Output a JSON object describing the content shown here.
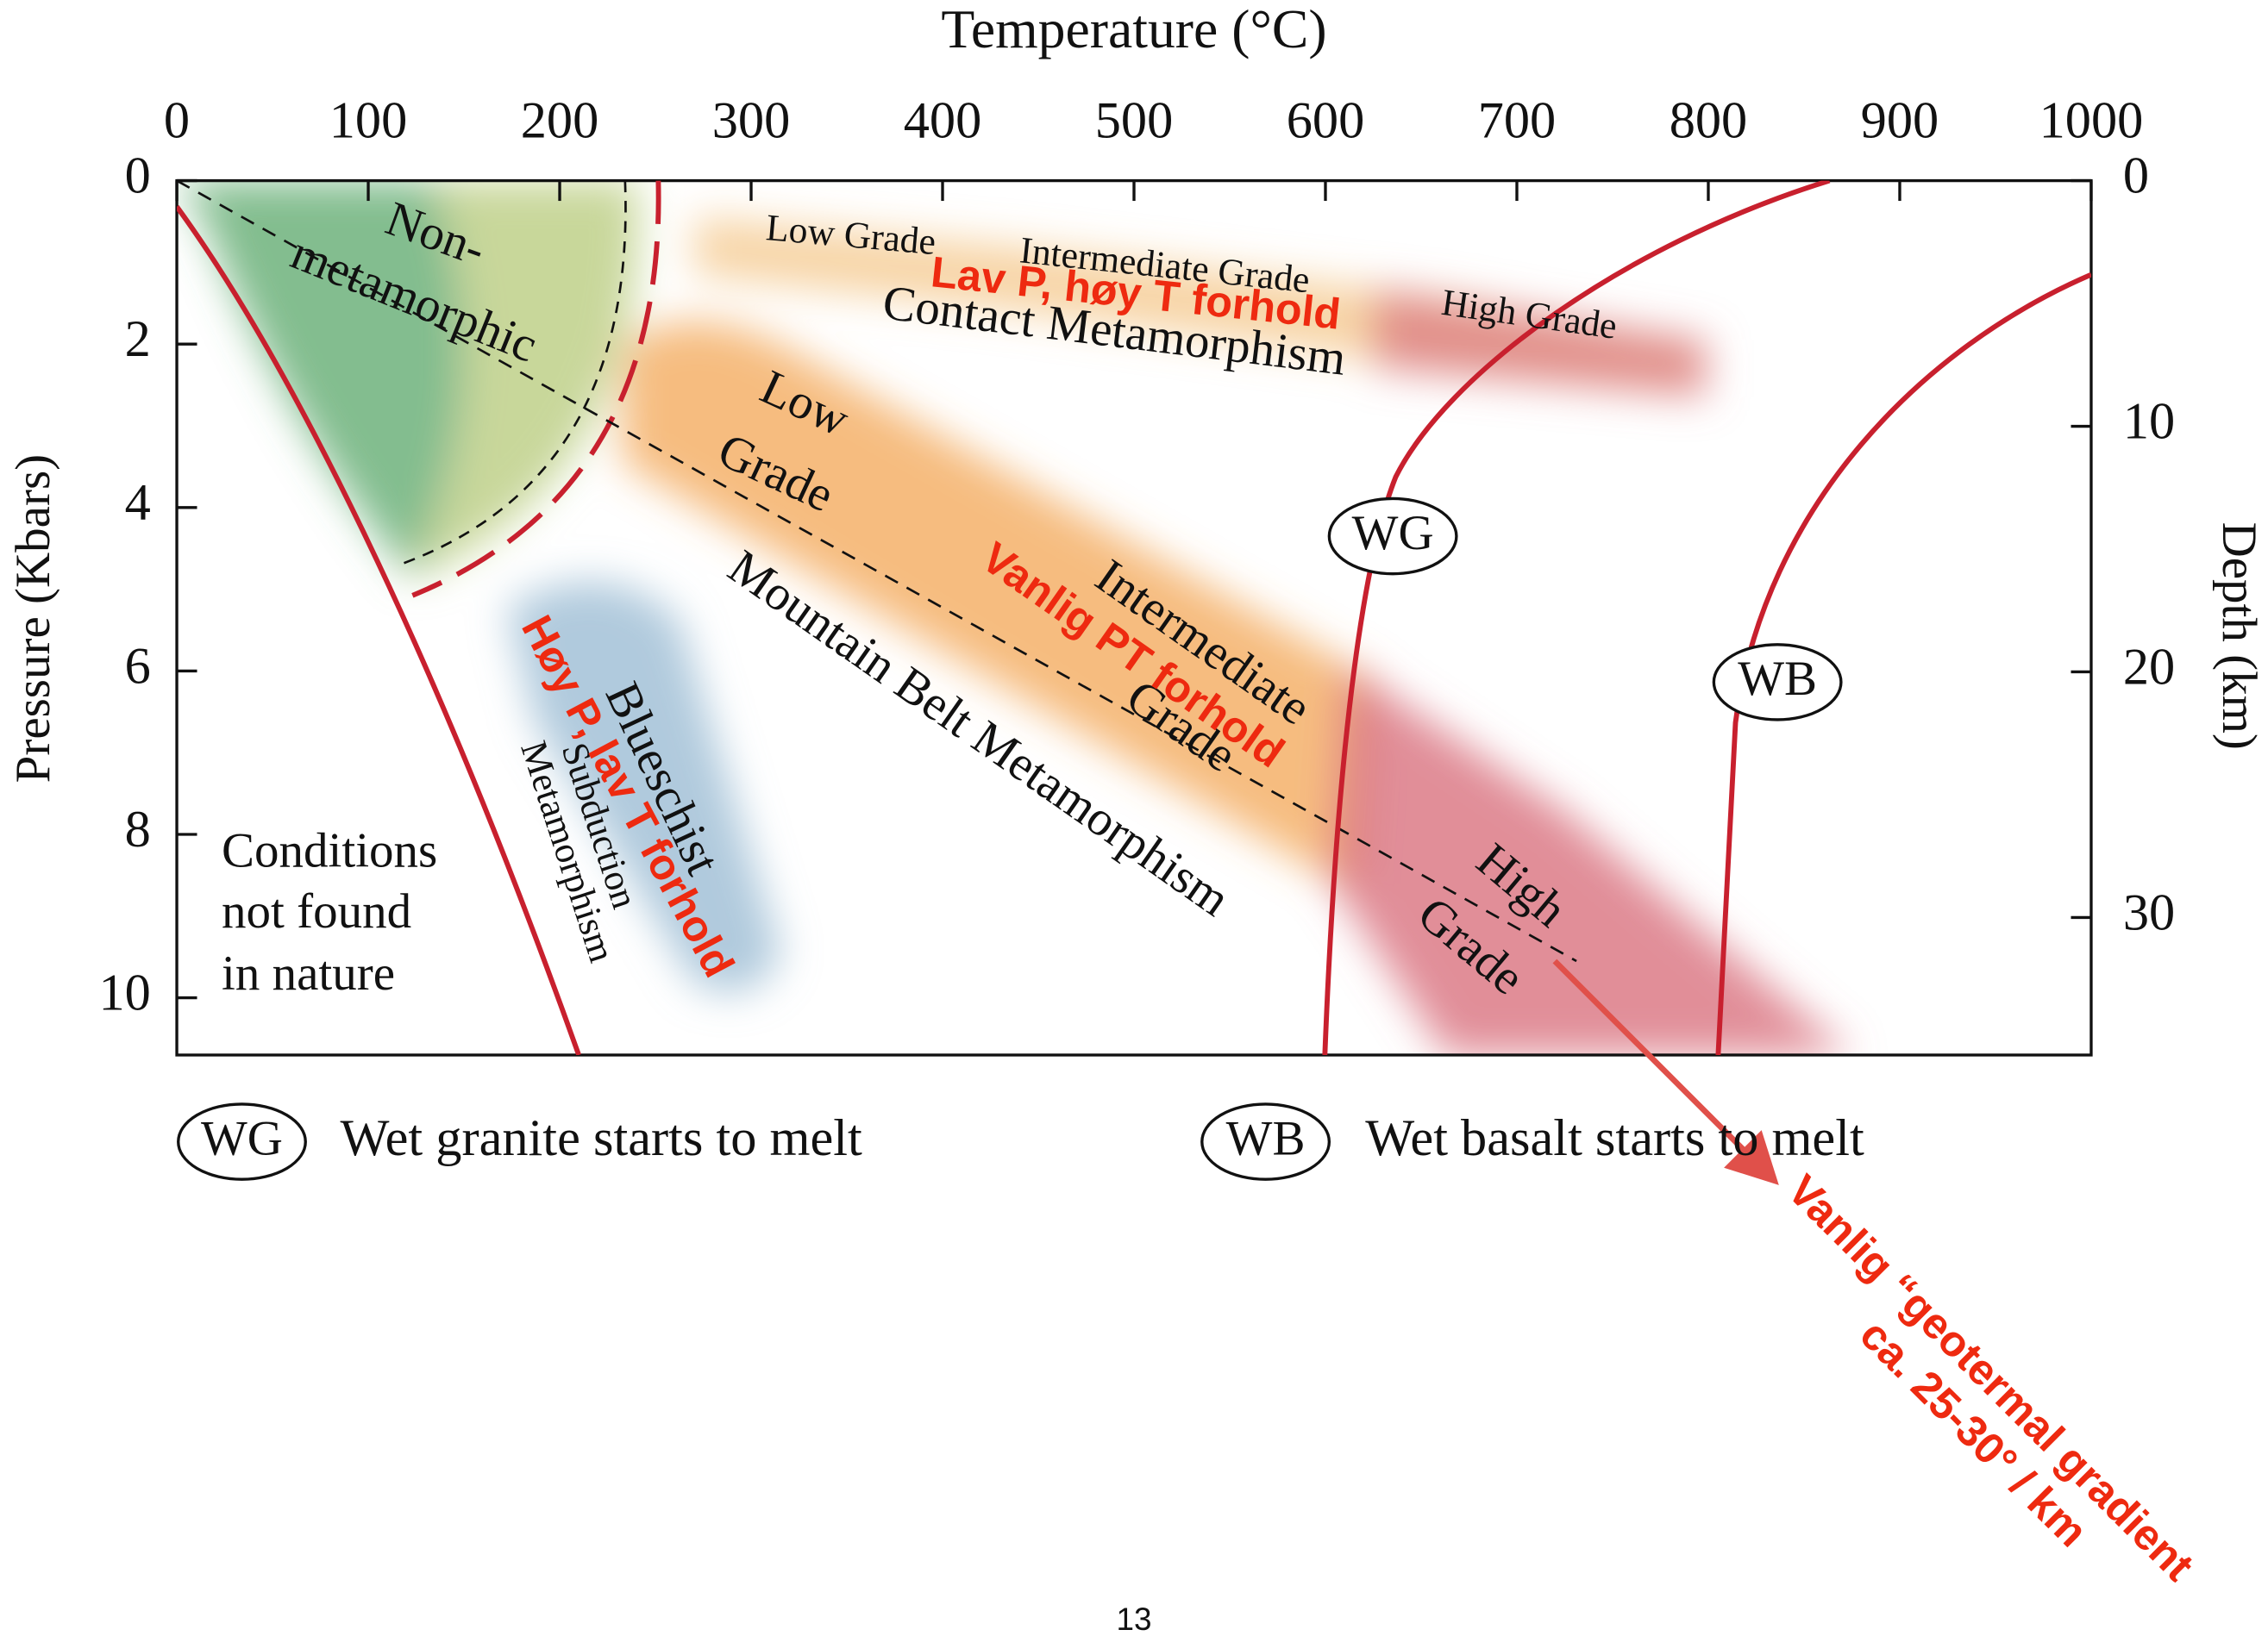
{
  "title": "Temperature (°C)",
  "x_axis": {
    "lim": [
      0,
      1000
    ],
    "ticks": [
      0,
      100,
      200,
      300,
      400,
      500,
      600,
      700,
      800,
      900,
      1000
    ]
  },
  "y_left": {
    "label": "Pressure (Kbars)",
    "lim": [
      0,
      10.7
    ],
    "ticks": [
      0,
      2,
      4,
      6,
      8,
      10
    ]
  },
  "y_right": {
    "label": "Depth (km)",
    "lim": [
      0,
      35.6
    ],
    "ticks": [
      0,
      10,
      20,
      30
    ]
  },
  "regions": {
    "non_1": "Non-",
    "non_2": "metamorphic",
    "contact_low": "Low Grade",
    "contact_mid": "Intermediate Grade",
    "contact_high": "High Grade",
    "contact": "Contact Metamorphism",
    "mb_low_1": "Low",
    "mb_low_2": "Grade",
    "mb_mid_1": "Intermediate",
    "mb_mid_2": "Grade",
    "mb_high_1": "High",
    "mb_high_2": "Grade",
    "mountain": "Mountain Belt Metamorphism",
    "blue_1": "Blueschist",
    "blue_2": "Subduction",
    "blue_3": "Metamorphism",
    "cond_1": "Conditions",
    "cond_2": "not found",
    "cond_3": "in nature",
    "wg": "WG",
    "wb": "WB"
  },
  "annotations": {
    "lav_p": "Lav P, høy T forhold",
    "vanlig_pt": "Vanlig PT forhold",
    "hoy_p": "Høy P, lav T forhold",
    "gradient_1": "Vanlig “geotermal gradient",
    "gradient_2": "ca. 25-30° / km"
  },
  "legend": [
    {
      "key": "WG",
      "text": "Wet granite starts to melt"
    },
    {
      "key": "WB",
      "text": "Wet basalt starts to melt"
    }
  ],
  "page_number": "13"
}
